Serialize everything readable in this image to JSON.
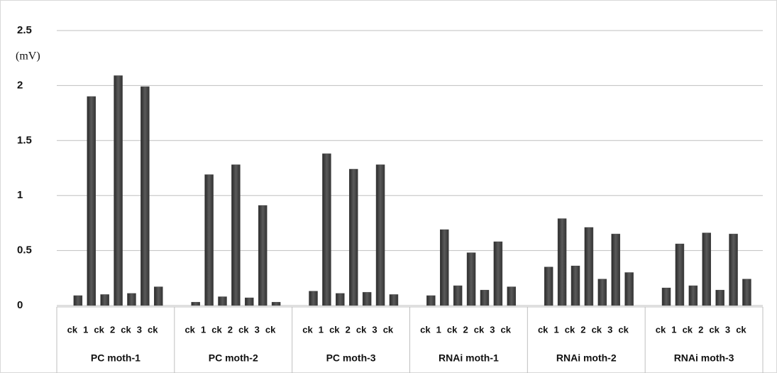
{
  "chart_data": {
    "type": "bar",
    "y_label": "(mV)",
    "groups": [
      "PC moth-1",
      "PC moth-2",
      "PC moth-3",
      "RNAi moth-1",
      "RNAi moth-2",
      "RNAi moth-3"
    ],
    "categories": [
      "ck",
      "1",
      "ck",
      "2",
      "ck",
      "3",
      "ck"
    ],
    "values": [
      [
        0.09,
        1.9,
        0.1,
        2.09,
        0.11,
        1.99,
        0.17
      ],
      [
        0.03,
        1.19,
        0.08,
        1.28,
        0.07,
        0.91,
        0.03
      ],
      [
        0.13,
        1.38,
        0.11,
        1.24,
        0.12,
        1.28,
        0.1
      ],
      [
        0.09,
        0.69,
        0.18,
        0.48,
        0.14,
        0.58,
        0.17
      ],
      [
        0.35,
        0.79,
        0.36,
        0.71,
        0.24,
        0.65,
        0.3
      ],
      [
        0.16,
        0.56,
        0.18,
        0.66,
        0.14,
        0.65,
        0.24
      ]
    ],
    "color": "#4a4a4a",
    "ylim": [
      0,
      2.5
    ],
    "yticks": [
      0,
      0.5,
      1,
      1.5,
      2,
      2.5
    ],
    "grid": true
  }
}
